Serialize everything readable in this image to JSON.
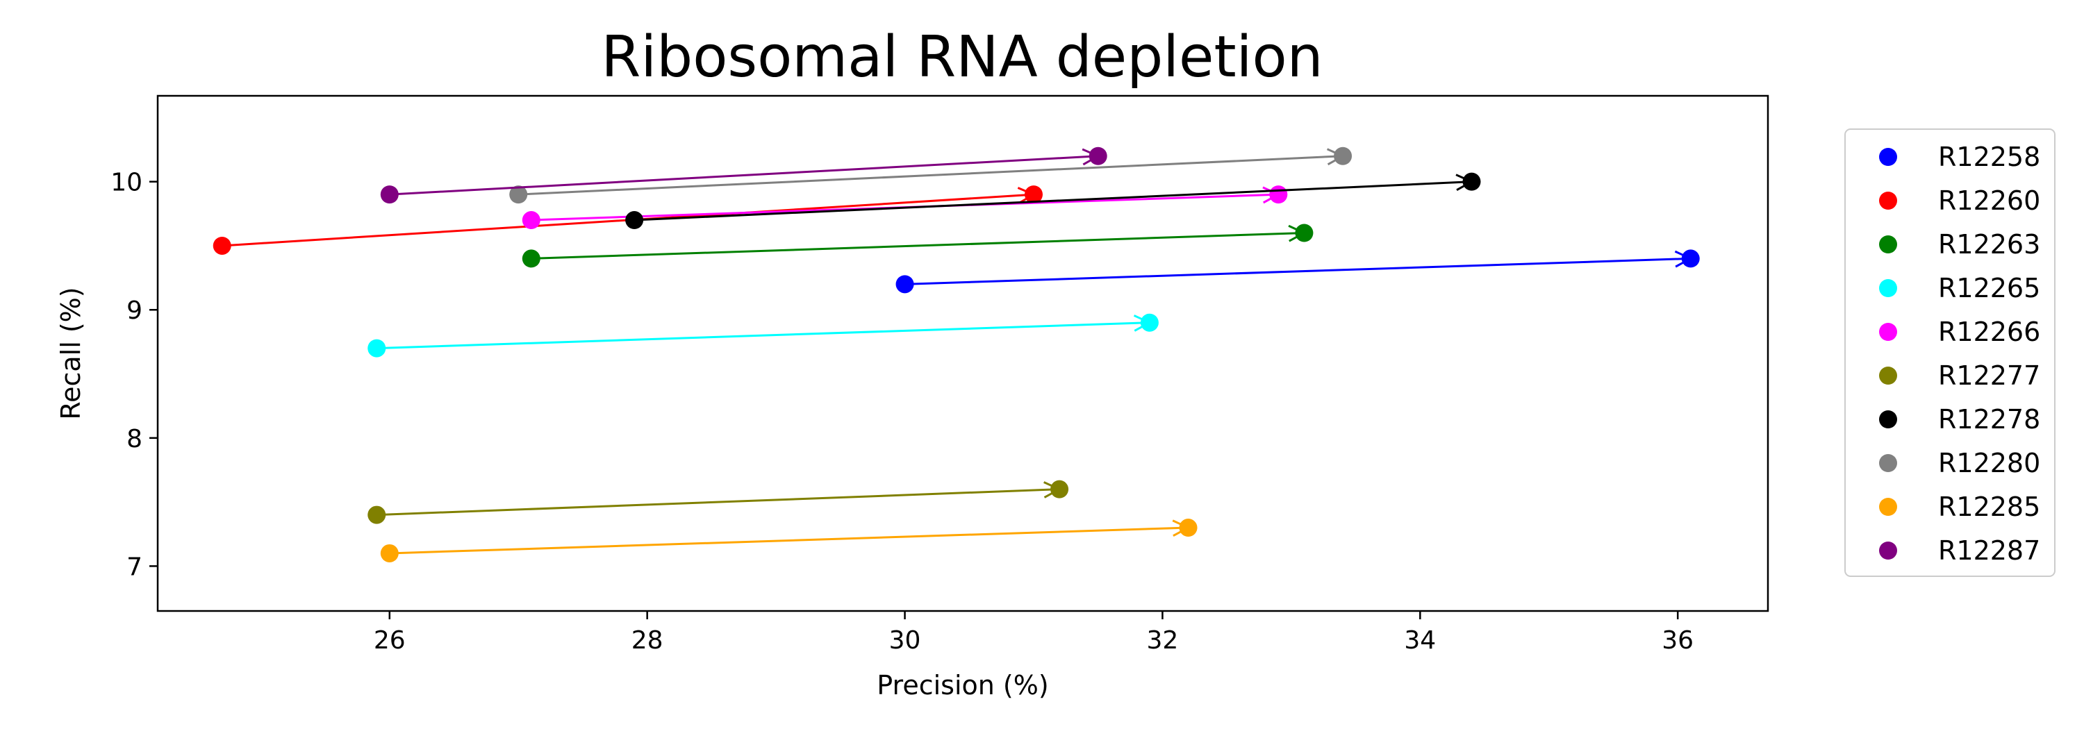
{
  "chart_data": {
    "type": "scatter",
    "title": "Ribosomal RNA depletion",
    "xlabel": "Precision (%)",
    "ylabel": "Recall (%)",
    "xlim": [
      24.2,
      36.7
    ],
    "ylim": [
      6.65,
      10.67
    ],
    "xticks": [
      26,
      28,
      30,
      32,
      34,
      36
    ],
    "yticks": [
      7,
      8,
      9,
      10
    ],
    "grid": false,
    "legend_position": "right",
    "series": [
      {
        "name": "R12258",
        "color": "#0000ff",
        "start": [
          30.0,
          9.2
        ],
        "end": [
          36.1,
          9.4
        ]
      },
      {
        "name": "R12260",
        "color": "#ff0000",
        "start": [
          24.7,
          9.5
        ],
        "end": [
          31.0,
          9.9
        ]
      },
      {
        "name": "R12263",
        "color": "#008000",
        "start": [
          27.1,
          9.4
        ],
        "end": [
          33.1,
          9.6
        ]
      },
      {
        "name": "R12265",
        "color": "#00ffff",
        "start": [
          25.9,
          8.7
        ],
        "end": [
          31.9,
          8.9
        ]
      },
      {
        "name": "R12266",
        "color": "#ff00ff",
        "start": [
          27.1,
          9.7
        ],
        "end": [
          32.9,
          9.9
        ]
      },
      {
        "name": "R12277",
        "color": "#808000",
        "start": [
          25.9,
          7.4
        ],
        "end": [
          31.2,
          7.6
        ]
      },
      {
        "name": "R12278",
        "color": "#000000",
        "start": [
          27.9,
          9.7
        ],
        "end": [
          34.4,
          10.0
        ]
      },
      {
        "name": "R12280",
        "color": "#808080",
        "start": [
          27.0,
          9.9
        ],
        "end": [
          33.4,
          10.2
        ]
      },
      {
        "name": "R12285",
        "color": "#ffa500",
        "start": [
          26.0,
          7.1
        ],
        "end": [
          32.2,
          7.3
        ]
      },
      {
        "name": "R12287",
        "color": "#800080",
        "start": [
          26.0,
          9.9
        ],
        "end": [
          31.5,
          10.2
        ]
      }
    ]
  }
}
